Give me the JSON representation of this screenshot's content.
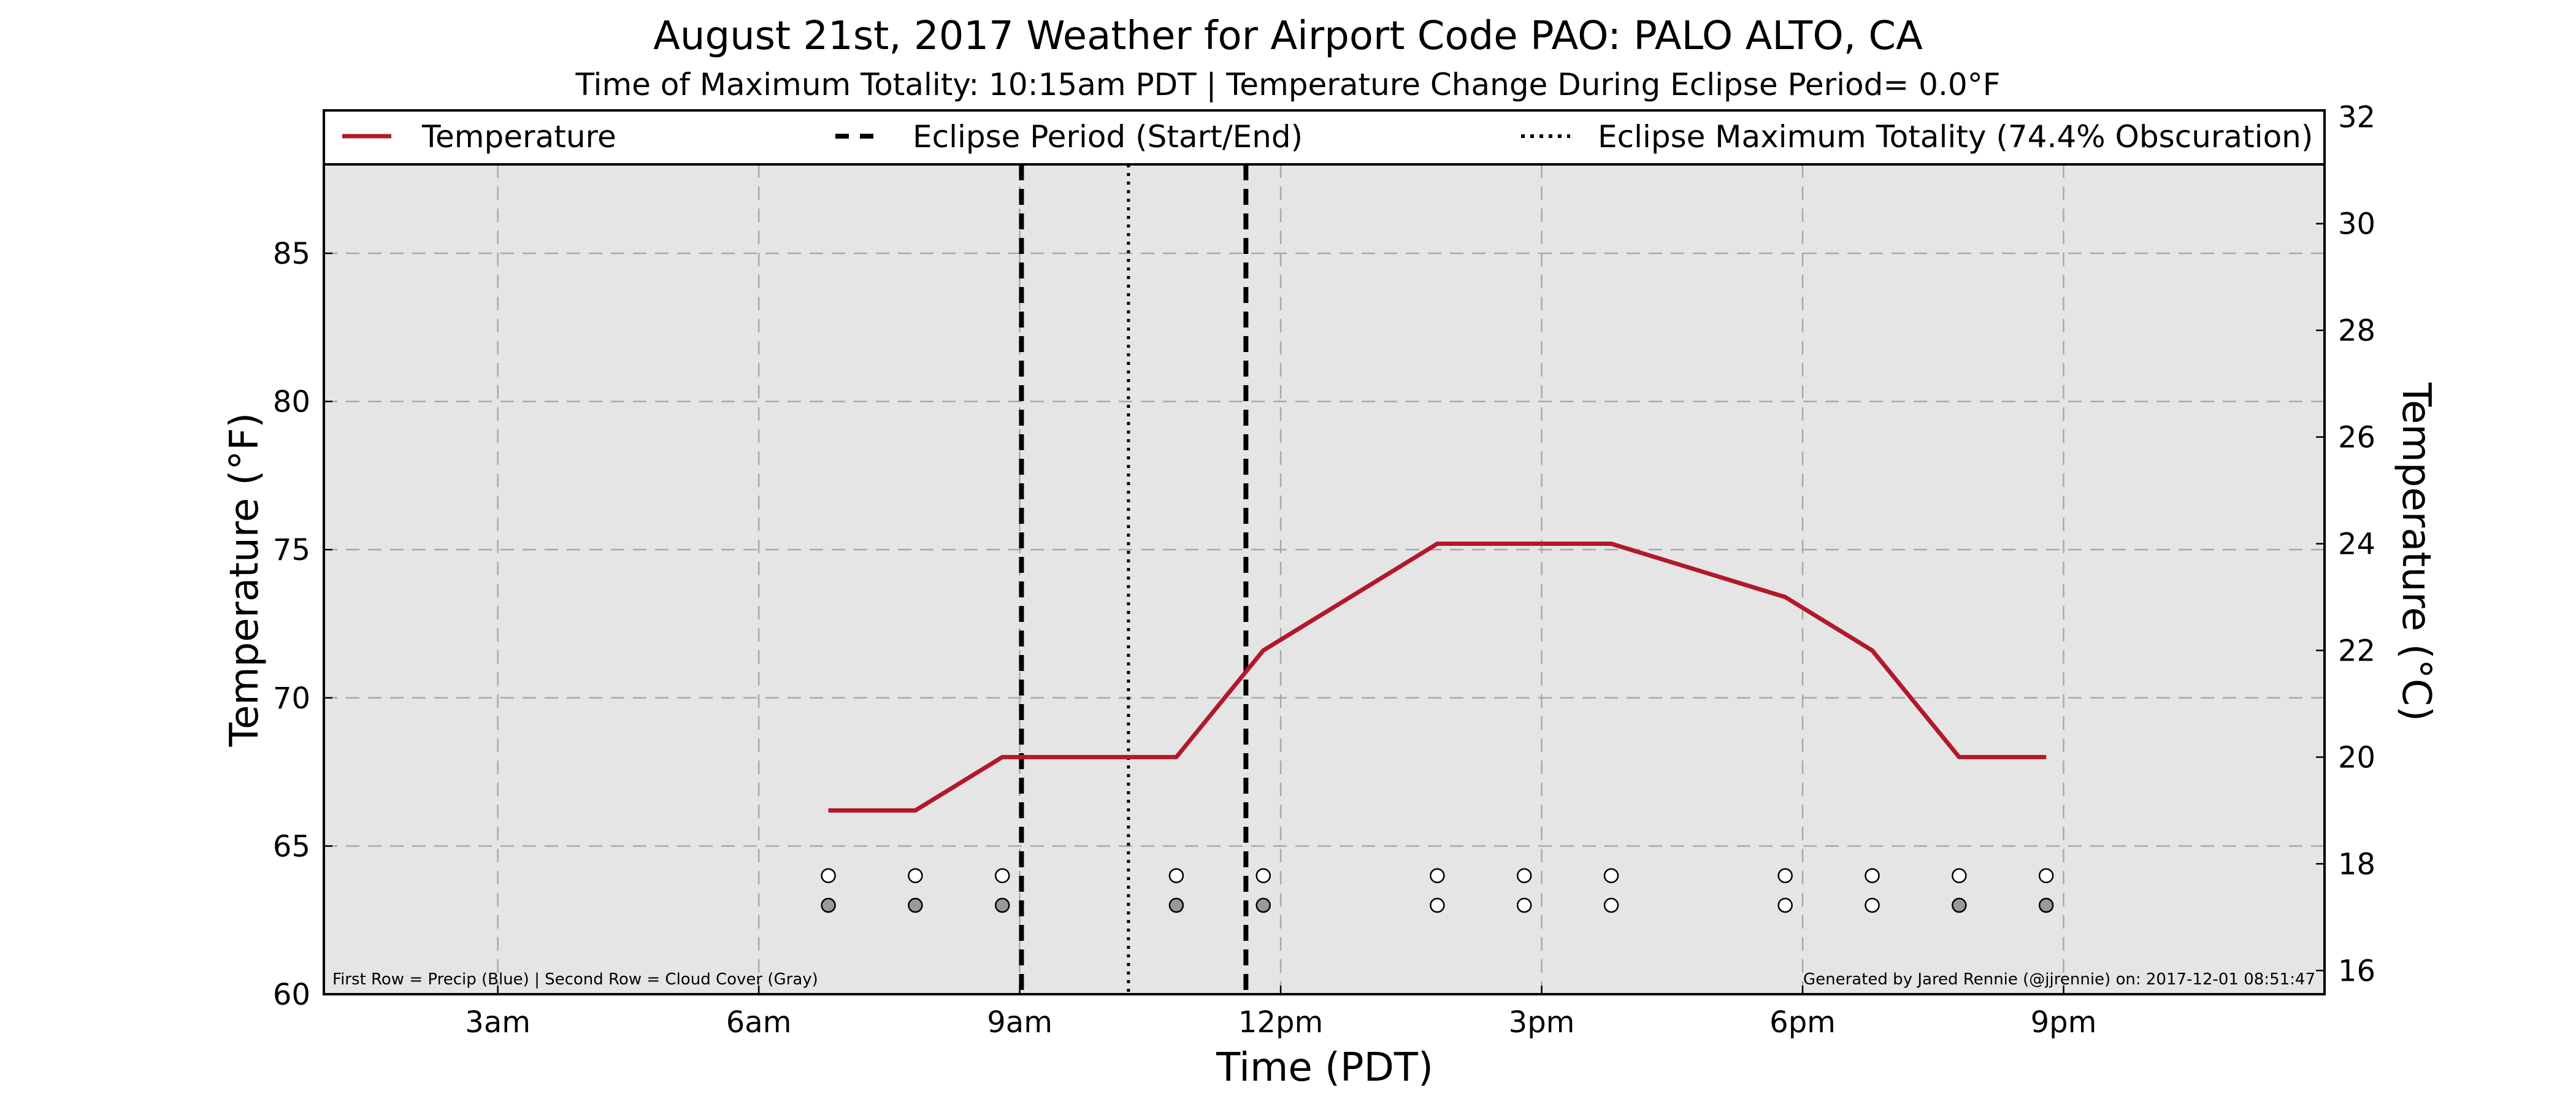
{
  "chart_data": {
    "type": "line",
    "title": "August 21st, 2017 Weather for Airport Code PAO: PALO ALTO, CA",
    "subtitle": "Time of Maximum Totality: 10:15am PDT | Temperature Change During Eclipse Period= 0.0°F",
    "xlabel": "Time (PDT)",
    "ylabel": "Temperature (°F)",
    "ylabel_right": "Temperature (°C)",
    "xlim": [
      1,
      24
    ],
    "ylim": [
      60,
      88
    ],
    "ylim_right": [
      15.5556,
      31.1111
    ],
    "x_ticks": [
      {
        "value": 3,
        "label": "3am"
      },
      {
        "value": 6,
        "label": "6am"
      },
      {
        "value": 9,
        "label": "9am"
      },
      {
        "value": 12,
        "label": "12pm"
      },
      {
        "value": 15,
        "label": "3pm"
      },
      {
        "value": 18,
        "label": "6pm"
      },
      {
        "value": 21,
        "label": "9pm"
      }
    ],
    "y_ticks": [
      60,
      65,
      70,
      75,
      80,
      85
    ],
    "y_ticks_right": [
      16,
      18,
      20,
      22,
      24,
      26,
      28,
      30,
      32
    ],
    "grid": true,
    "legend_placement": "top (above plot)",
    "series": [
      {
        "name": "Temperature",
        "color": "#b2182b",
        "x": [
          6.8,
          7.8,
          8.8,
          10.8,
          11.8,
          13.8,
          14.8,
          15.8,
          17.8,
          18.8,
          19.8,
          20.8
        ],
        "y": [
          66.2,
          66.2,
          68.0,
          68.0,
          71.6,
          75.2,
          75.2,
          75.2,
          73.4,
          71.6,
          68.0,
          68.0
        ]
      }
    ],
    "eclipse_period": {
      "name": "Eclipse Period (Start/End)",
      "start": 9.02,
      "end": 11.6
    },
    "max_totality": {
      "name": "Eclipse Maximum Totality (74.4% Obscuration)",
      "x": 10.25
    },
    "markers": {
      "x": [
        6.8,
        7.8,
        8.8,
        10.8,
        11.8,
        13.8,
        14.8,
        15.8,
        17.8,
        18.8,
        19.8,
        20.8
      ],
      "precip_row_y": 64,
      "cloud_row_y": 63,
      "precip_colors": [
        "#ffffff",
        "#ffffff",
        "#ffffff",
        "#ffffff",
        "#ffffff",
        "#ffffff",
        "#ffffff",
        "#ffffff",
        "#ffffff",
        "#ffffff",
        "#ffffff",
        "#ffffff"
      ],
      "cloud_colors": [
        "#999999",
        "#999999",
        "#999999",
        "#999999",
        "#999999",
        "#ffffff",
        "#ffffff",
        "#ffffff",
        "#ffffff",
        "#ffffff",
        "#999999",
        "#999999"
      ]
    },
    "footnote_left": "First Row = Precip (Blue) | Second Row = Cloud Cover (Gray)",
    "footnote_right": "Generated by Jared Rennie (@jjrennie) on: 2017-12-01 08:51:47"
  }
}
